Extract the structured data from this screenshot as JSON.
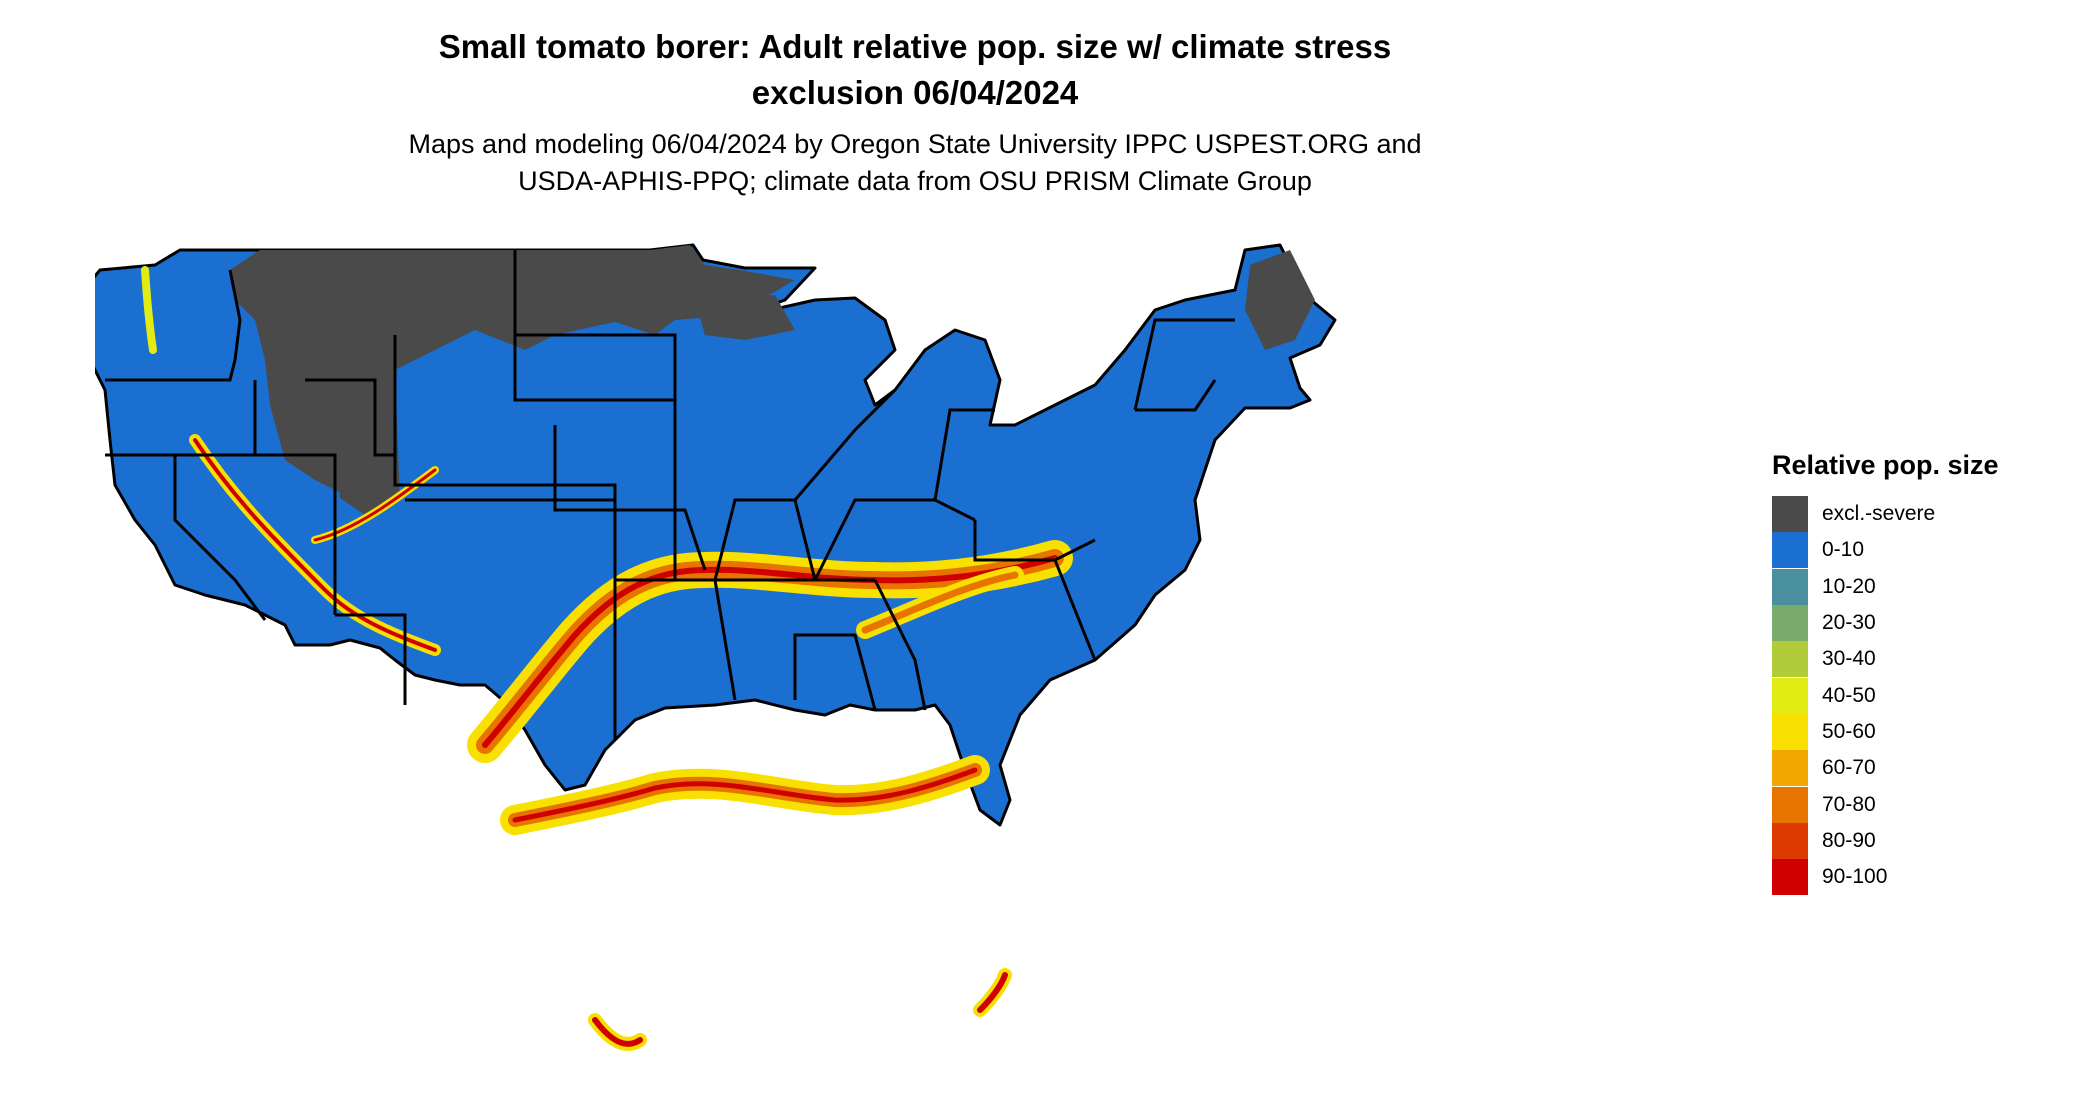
{
  "title": {
    "line1": "Small tomato borer: Adult relative pop. size w/ climate stress",
    "line2": "exclusion 06/04/2024"
  },
  "subtitle": {
    "line1": "Maps and modeling 06/04/2024 by Oregon State University IPPC USPEST.ORG and",
    "line2": "USDA-APHIS-PPQ; climate data from OSU PRISM Climate Group"
  },
  "legend": {
    "title": "Relative pop. size",
    "items": [
      {
        "label": "excl.-severe",
        "color": "#4a4a4a"
      },
      {
        "label": "0-10",
        "color": "#1b6fd0"
      },
      {
        "label": "10-20",
        "color": "#4a8fa0"
      },
      {
        "label": "20-30",
        "color": "#7aab6e"
      },
      {
        "label": "30-40",
        "color": "#b0cc3a"
      },
      {
        "label": "40-50",
        "color": "#e2ec14"
      },
      {
        "label": "50-60",
        "color": "#f8e000"
      },
      {
        "label": "60-70",
        "color": "#f0a800"
      },
      {
        "label": "70-80",
        "color": "#e87400"
      },
      {
        "label": "80-90",
        "color": "#dc3a00"
      },
      {
        "label": "90-100",
        "color": "#d00000"
      }
    ]
  },
  "map": {
    "region": "contiguous-united-states",
    "base_color": "#1b6fd0",
    "excluded_color": "#4a4a4a",
    "border_color": "#000000",
    "high_band_colors": [
      "#f8e000",
      "#e87400",
      "#d00000"
    ]
  }
}
